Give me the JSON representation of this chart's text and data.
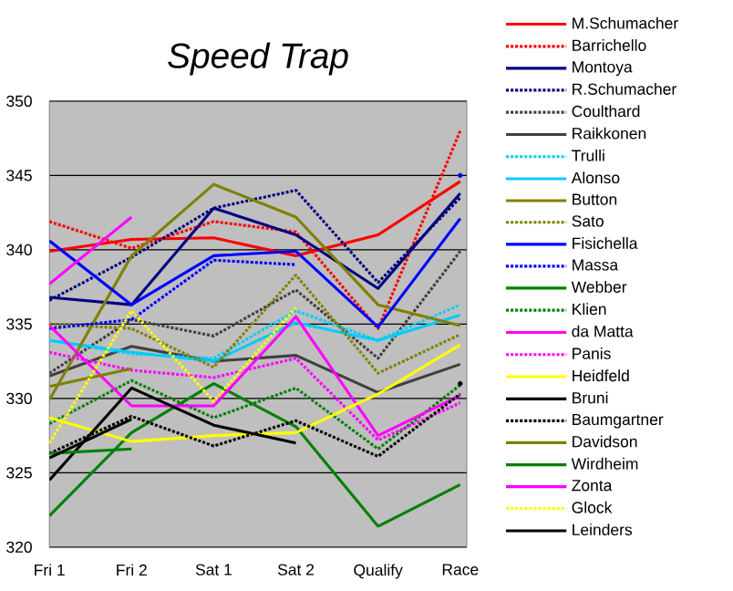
{
  "chart_data": {
    "type": "line",
    "title": "Speed Trap",
    "categories": [
      "Fri 1",
      "Fri 2",
      "Sat 1",
      "Sat 2",
      "Qualify",
      "Race"
    ],
    "ylim": [
      320,
      350
    ],
    "yticks": [
      320,
      325,
      330,
      335,
      340,
      345,
      350
    ],
    "grid": "y",
    "legend": "right",
    "marker": "none",
    "series": [
      {
        "name": "M.Schumacher",
        "color": "#ff0000",
        "line_style": "solid",
        "values": [
          339.9,
          340.7,
          340.8,
          339.6,
          341.0,
          344.6
        ]
      },
      {
        "name": "Barrichello",
        "color": "#ff0000",
        "line_style": "dotted",
        "values": [
          341.9,
          340.1,
          341.9,
          341.2,
          334.7,
          348.0
        ]
      },
      {
        "name": "Montoya",
        "color": "#000080",
        "line_style": "solid",
        "values": [
          336.8,
          336.3,
          342.8,
          341.0,
          337.4,
          343.8
        ]
      },
      {
        "name": "R.Schumacher",
        "color": "#000080",
        "line_style": "dotted",
        "values": [
          336.6,
          339.5,
          342.8,
          344.0,
          337.8,
          343.5
        ]
      },
      {
        "name": "Coulthard",
        "color": "#404040",
        "line_style": "dotted",
        "values": [
          331.7,
          335.3,
          334.2,
          337.3,
          332.7,
          339.9
        ]
      },
      {
        "name": "Raikkonen",
        "color": "#404040",
        "line_style": "solid",
        "values": [
          331.5,
          333.5,
          332.5,
          332.9,
          330.4,
          332.3
        ]
      },
      {
        "name": "Trulli",
        "color": "#00ccff",
        "line_style": "dotted",
        "values": [
          333.9,
          333.0,
          332.7,
          335.9,
          333.9,
          336.3
        ]
      },
      {
        "name": "Alonso",
        "color": "#00ccff",
        "line_style": "solid",
        "values": [
          333.9,
          333.1,
          332.5,
          335.1,
          333.9,
          335.6
        ]
      },
      {
        "name": "Button",
        "color": "#808000",
        "line_style": "solid",
        "values": [
          329.9,
          339.6,
          344.4,
          342.2,
          336.3,
          334.9
        ]
      },
      {
        "name": "Sato",
        "color": "#808000",
        "line_style": "dotted",
        "values": [
          335.0,
          334.7,
          332.1,
          338.3,
          331.7,
          334.3
        ]
      },
      {
        "name": "Fisichella",
        "color": "#0000ff",
        "line_style": "solid",
        "values": [
          340.6,
          336.3,
          339.6,
          339.9,
          334.8,
          342.1
        ]
      },
      {
        "name": "Massa",
        "color": "#0000ff",
        "line_style": "dotted",
        "values": [
          334.7,
          335.3,
          339.3,
          339.0,
          null,
          345.0
        ]
      },
      {
        "name": "Webber",
        "color": "#008000",
        "line_style": "solid",
        "values": [
          322.1,
          327.7,
          331.0,
          328.1,
          321.4,
          324.2
        ]
      },
      {
        "name": "Klien",
        "color": "#008000",
        "line_style": "dotted",
        "values": [
          328.3,
          331.2,
          328.7,
          330.7,
          326.6,
          330.9
        ]
      },
      {
        "name": "da Matta",
        "color": "#ff00ff",
        "line_style": "solid",
        "values": [
          334.9,
          329.5,
          329.5,
          335.5,
          327.5,
          330.2
        ]
      },
      {
        "name": "Panis",
        "color": "#ff00ff",
        "line_style": "dotted",
        "values": [
          333.1,
          331.9,
          331.4,
          332.7,
          327.2,
          329.7
        ]
      },
      {
        "name": "Heidfeld",
        "color": "#ffff00",
        "line_style": "solid",
        "values": [
          328.7,
          327.1,
          327.5,
          327.7,
          330.3,
          333.6
        ]
      },
      {
        "name": "Bruni",
        "color": "#000000",
        "line_style": "solid",
        "values": [
          324.5,
          330.7,
          328.2,
          327.0,
          null,
          331.0
        ]
      },
      {
        "name": "Baumgartner",
        "color": "#000000",
        "line_style": "dotted",
        "values": [
          326.3,
          328.8,
          326.8,
          328.5,
          326.1,
          330.3
        ]
      },
      {
        "name": "Davidson",
        "color": "#808000",
        "line_style": "solid",
        "values": [
          330.8,
          332.0,
          null,
          null,
          null,
          null
        ]
      },
      {
        "name": "Wirdheim",
        "color": "#008000",
        "line_style": "solid",
        "values": [
          326.3,
          326.6,
          null,
          null,
          null,
          null
        ]
      },
      {
        "name": "Zonta",
        "color": "#ff00ff",
        "line_style": "solid",
        "values": [
          337.7,
          342.2,
          null,
          null,
          null,
          null
        ]
      },
      {
        "name": "Glock",
        "color": "#ffff00",
        "line_style": "dotted",
        "values": [
          327.0,
          335.9,
          329.8,
          336.1,
          null,
          null
        ]
      },
      {
        "name": "Leinders",
        "color": "#000000",
        "line_style": "solid",
        "values": [
          326.0,
          328.6,
          null,
          null,
          null,
          null
        ]
      }
    ]
  }
}
